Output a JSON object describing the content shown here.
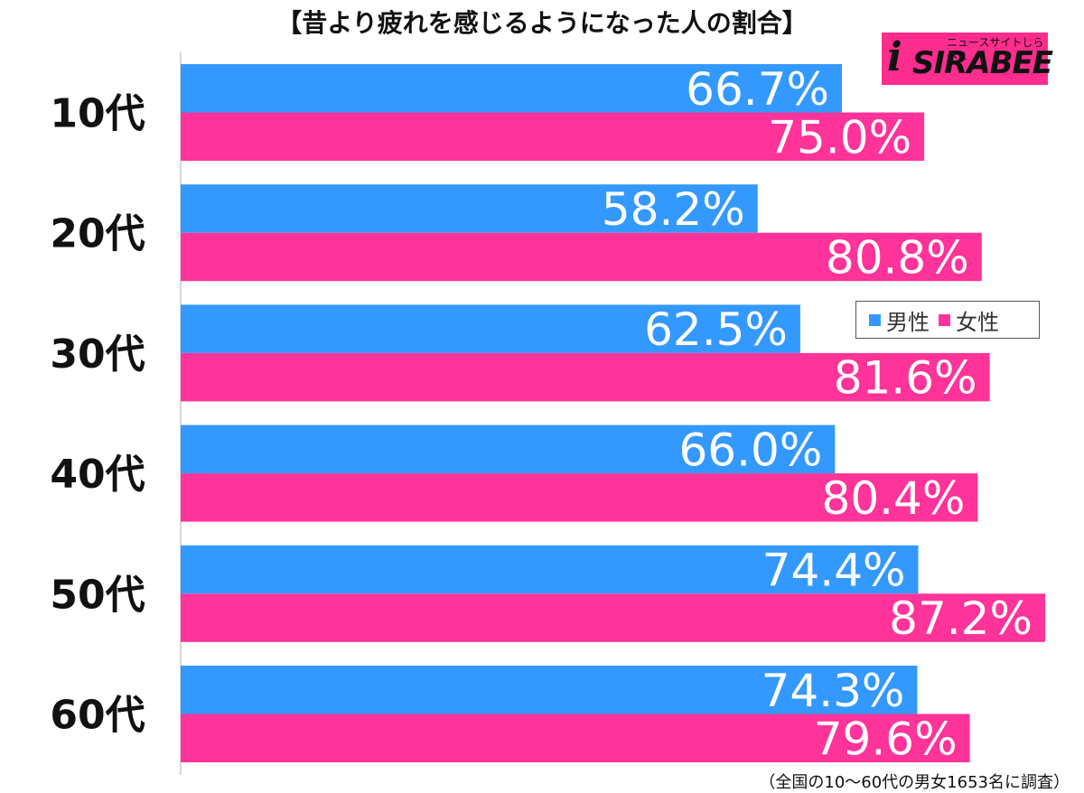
{
  "title": "【昔より疲れを感じるようになった人の割合】",
  "logo": {
    "mark": "i",
    "brand": "SIRABEE",
    "tagline": "ニュースサイトしらべぇ"
  },
  "legend": [
    {
      "label": "男性",
      "color": "#3399ff"
    },
    {
      "label": "女性",
      "color": "#ff3399"
    }
  ],
  "footnote": "（全国の10〜60代の男女1653名に調査）",
  "chart_data": {
    "type": "bar",
    "orientation": "horizontal",
    "categories": [
      "10代",
      "20代",
      "30代",
      "40代",
      "50代",
      "60代"
    ],
    "series": [
      {
        "name": "男性",
        "color": "#3399ff",
        "values": [
          66.7,
          58.2,
          62.5,
          66.0,
          74.4,
          74.3
        ]
      },
      {
        "name": "女性",
        "color": "#ff3399",
        "values": [
          75.0,
          80.8,
          81.6,
          80.4,
          87.2,
          79.6
        ]
      }
    ],
    "value_labels": [
      [
        "66.7%",
        "58.2%",
        "62.5%",
        "66.0%",
        "74.4%",
        "74.3%"
      ],
      [
        "75.0%",
        "80.8%",
        "81.6%",
        "80.4%",
        "87.2%",
        "79.6%"
      ]
    ],
    "xlim": [
      0,
      87.2
    ],
    "grid": false,
    "legend_position": "right-middle"
  }
}
